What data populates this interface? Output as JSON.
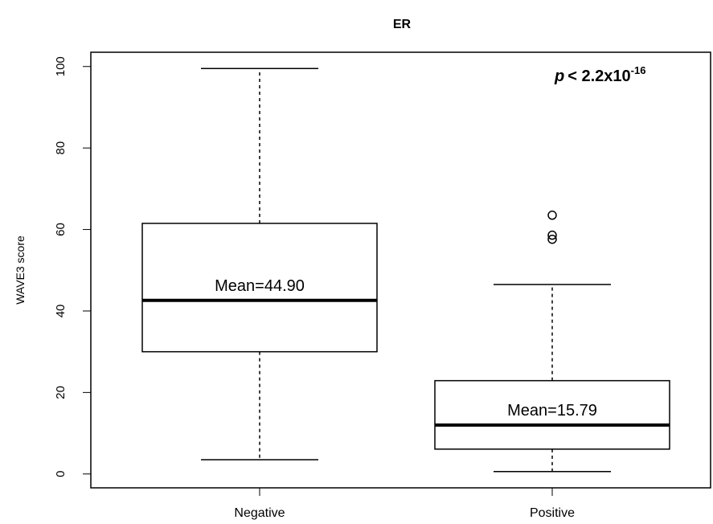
{
  "chart_data": {
    "type": "box",
    "title": "ER",
    "y_label": "WAVE3 score",
    "categories": [
      "Negative",
      "Positive"
    ],
    "boxes": [
      {
        "whislo": 3.5,
        "q1": 30.0,
        "med": 42.6,
        "q3": 61.5,
        "whishi": 99.5,
        "fliers": []
      },
      {
        "whislo": 0.6,
        "q1": 6.1,
        "med": 12.0,
        "q3": 22.9,
        "whishi": 46.5,
        "fliers": [
          63.5,
          58.6,
          57.6
        ]
      }
    ],
    "annotations": [
      "Mean=44.90",
      "Mean=15.79"
    ],
    "p_value": {
      "italic": "p",
      "text": "< 2.2x10",
      "superscript": "-16"
    },
    "ylim": [
      -3.4,
      103.5
    ],
    "yticks": [
      0,
      20,
      40,
      60,
      80,
      100
    ],
    "color": "#000000"
  }
}
